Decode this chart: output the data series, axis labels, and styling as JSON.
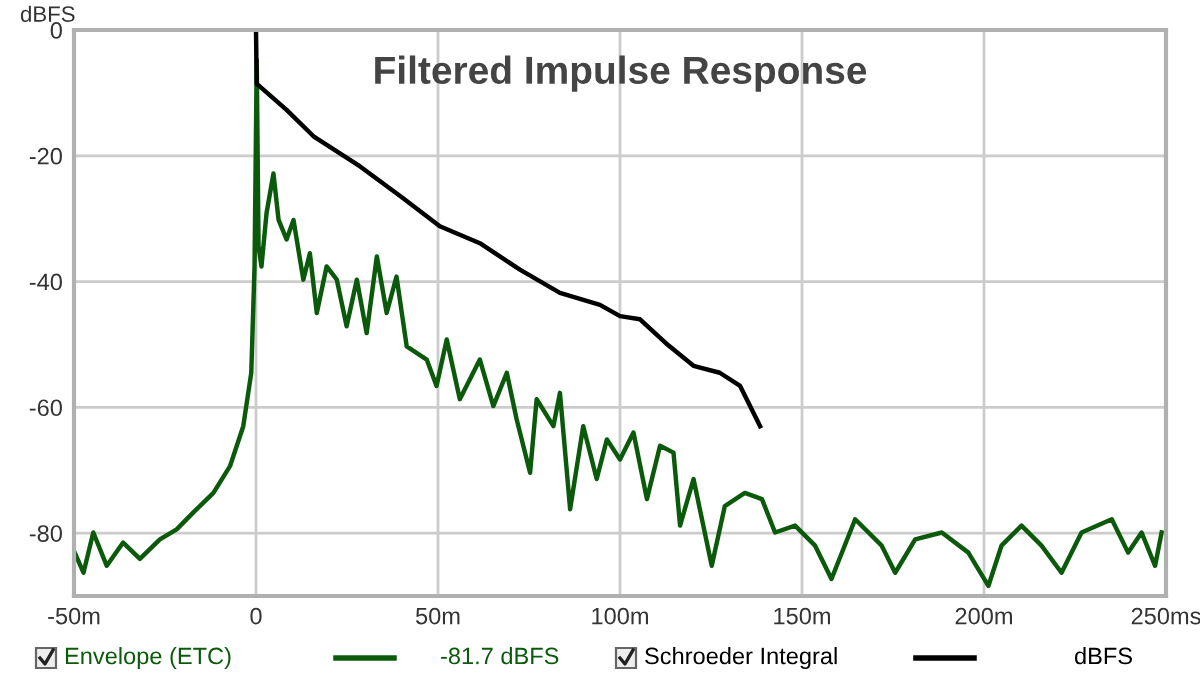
{
  "chart_data": {
    "type": "line",
    "title": "Filtered Impulse Response",
    "ylabel": "dBFS",
    "xlim": [
      -50,
      250
    ],
    "ylim": [
      -90,
      0
    ],
    "xticks": [
      {
        "value": -50,
        "label": "-50m"
      },
      0,
      {
        "value": 50,
        "label": "50m"
      },
      {
        "value": 100,
        "label": "100m"
      },
      {
        "value": 150,
        "label": "150m"
      },
      {
        "value": 200,
        "label": "200m"
      },
      {
        "value": 250,
        "label": "250ms"
      }
    ],
    "yticks": [
      0,
      -20,
      -40,
      -60,
      -80
    ],
    "grid": true,
    "legend": "bottom",
    "marker": "none",
    "line_style": "solid",
    "annotations": [
      "-81.7 dBFS",
      "dBFS"
    ],
    "series": [
      {
        "name": "Envelope (ETC)",
        "color": "#0b5a0b",
        "x": [
          -49.8,
          -47.4,
          -44.7,
          -41,
          -36.5,
          -31.9,
          -26.4,
          -21.8,
          -17.2,
          -11.7,
          -7.1,
          -3.5,
          -1.3,
          -0.4,
          0.2,
          0.7,
          1.5,
          2.9,
          4.8,
          6.2,
          8.4,
          10.3,
          13,
          14.8,
          16.7,
          19.4,
          22.2,
          24.9,
          27.7,
          30.4,
          33.2,
          35.9,
          38.6,
          41.4,
          46.9,
          49.6,
          52.4,
          56,
          61.5,
          65.2,
          68.9,
          71.6,
          75.3,
          77.1,
          81.7,
          83.5,
          86.3,
          89.9,
          93.6,
          96.4,
          100,
          103.7,
          107.4,
          111,
          114.7,
          116.5,
          120.2,
          125.2,
          128.8,
          134.3,
          139,
          142.6,
          148.1,
          153.6,
          158.1,
          164.6,
          171.9,
          175.6,
          181.1,
          188.4,
          195.7,
          201.2,
          204.8,
          210.3,
          215.8,
          221.3,
          226.8,
          235.1,
          239.6,
          243.3,
          247,
          248.8
        ],
        "values": [
          -83.1,
          -86.3,
          -79.9,
          -85.2,
          -81.5,
          -84.1,
          -81,
          -79.4,
          -76.7,
          -73.6,
          -69.3,
          -63,
          -54.5,
          -37.6,
          -4.8,
          -34.4,
          -37.6,
          -29.1,
          -22.8,
          -30.2,
          -33.3,
          -30.2,
          -39.7,
          -35.5,
          -45,
          -37.6,
          -39.7,
          -47.1,
          -39.7,
          -48.2,
          -36,
          -45,
          -39.2,
          -50.3,
          -52.4,
          -56.6,
          -49.2,
          -58.7,
          -52.4,
          -59.8,
          -54.5,
          -61.9,
          -70.4,
          -58.7,
          -63,
          -57.7,
          -76.2,
          -63,
          -71.4,
          -65.1,
          -68.3,
          -64,
          -74.6,
          -66.1,
          -67.2,
          -78.8,
          -71.4,
          -85.2,
          -75.7,
          -73.6,
          -74.6,
          -79.9,
          -78.8,
          -82,
          -87.3,
          -77.8,
          -82,
          -86.3,
          -81,
          -79.9,
          -83.1,
          -88.4,
          -82,
          -78.8,
          -82,
          -86.3,
          -79.9,
          -77.8,
          -83.1,
          -79.9,
          -85.2,
          -79.9
        ]
      },
      {
        "name": "Schroeder Integral",
        "color": "#000000",
        "x": [
          0,
          0.2,
          1.1,
          8.4,
          15.8,
          28.6,
          39.6,
          50.5,
          61.5,
          72.5,
          83.5,
          94.5,
          100,
          105.5,
          112.6,
          120.2,
          127.4,
          133,
          138.5
        ],
        "values": [
          0,
          -8.6,
          -9.0,
          -12.7,
          -16.9,
          -21.7,
          -26.4,
          -31.2,
          -33.9,
          -38.1,
          -41.8,
          -43.7,
          -45.5,
          -46.0,
          -49.8,
          -53.4,
          -54.5,
          -56.6,
          -63.0
        ]
      }
    ]
  }
}
